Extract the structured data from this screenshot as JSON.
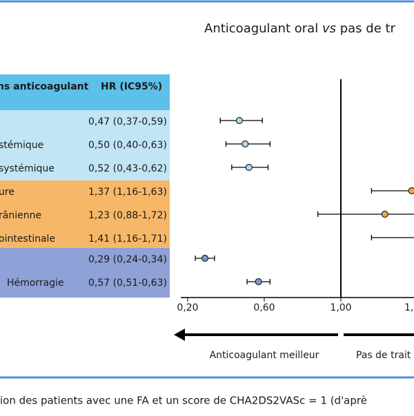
{
  "chart_data": {
    "type": "forest",
    "title_parts": [
      "Anticoagulant oral ",
      "vs",
      " pas de tr"
    ],
    "table_header": [
      "ns anticoagulant",
      "HR (IC95%)"
    ],
    "categories": [
      null,
      "stémique",
      "systémique",
      "ure",
      "rânienne",
      "ointestinale",
      null,
      "Hémorragie"
    ],
    "values": [
      0.47,
      0.5,
      0.52,
      1.37,
      1.23,
      1.41,
      0.29,
      0.57
    ],
    "lower": [
      0.37,
      0.4,
      0.43,
      1.16,
      0.88,
      1.16,
      0.24,
      0.51
    ],
    "upper": [
      0.59,
      0.63,
      0.62,
      1.63,
      1.72,
      1.71,
      0.34,
      0.63
    ],
    "value_labels": [
      "0,47 (0,37-0,59)",
      "0,50 (0,40-0,63)",
      "0,52 (0,43-0,62)",
      "1,37 (1,16-1,63)",
      "1,23 (0,88-1,72)",
      "1,41 (1,16-1,71)",
      "0,29 (0,24-0,34)",
      "0,57 (0,51-0,63)"
    ],
    "row_colors": [
      "#c2e5f6",
      "#c2e5f6",
      "#c2e5f6",
      "#f6b868",
      "#f6b868",
      "#f6b868",
      "#8ea2d7",
      "#8ea2d7"
    ],
    "point_colors": [
      "#a9d9f1",
      "#a9d9f1",
      "#a9d9f1",
      "#f3a54c",
      "#f3a54c",
      "#f3a54c",
      "#8195cf",
      "#8195cf"
    ],
    "header_color": "#5cc0ea",
    "ref_line": 1.0,
    "xlim": [
      0.157,
      1.382
    ],
    "xticks": [
      {
        "value": 0.2,
        "label": "0,20"
      },
      {
        "value": 0.6,
        "label": "0,60"
      },
      {
        "value": 1.0,
        "label": "1,00"
      },
      {
        "value": 1.4,
        "label": "1,"
      }
    ],
    "arrow_labels": [
      "Anticoagulant meilleur",
      "Pas de trait"
    ],
    "caption": "ion des patients avec une FA et un score de CHA2DS2VASc = 1 (d'aprè"
  }
}
